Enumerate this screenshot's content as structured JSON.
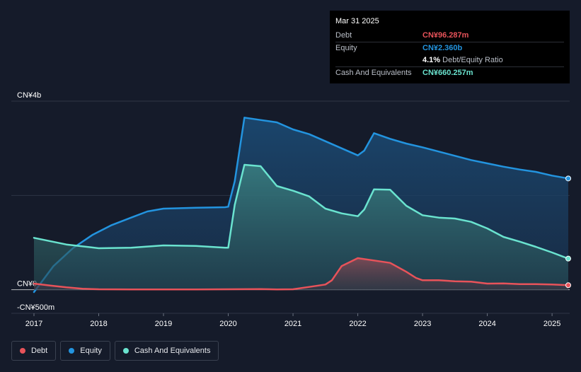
{
  "tooltip": {
    "date": "Mar 31 2025",
    "rows": [
      {
        "label": "Debt",
        "value": "CN¥96.287m",
        "color": "#e8535a"
      },
      {
        "label": "Equity",
        "value": "CN¥2.360b",
        "color": "#2394df"
      },
      {
        "label": "",
        "value": "4.1%",
        "suffix": "Debt/Equity Ratio",
        "color": "#ffffff"
      },
      {
        "label": "Cash And Equivalents",
        "value": "CN¥660.257m",
        "color": "#6ae3cf"
      }
    ]
  },
  "legend": [
    {
      "label": "Debt",
      "color": "#e8535a"
    },
    {
      "label": "Equity",
      "color": "#2394df"
    },
    {
      "label": "Cash And Equivalents",
      "color": "#6ae3cf"
    }
  ],
  "chart_data": {
    "type": "area",
    "title": "",
    "xlabel": "",
    "ylabel": "",
    "y_unit": "CN¥m",
    "y_tick_labels": [
      {
        "value": 4000,
        "label": "CN¥4b"
      },
      {
        "value": 0,
        "label": "CN¥0"
      },
      {
        "value": -500,
        "label": "-CN¥500m"
      }
    ],
    "ylim": [
      -500,
      4000
    ],
    "xlim": [
      2017.0,
      2025.25
    ],
    "x_ticks": [
      "2017",
      "2018",
      "2019",
      "2020",
      "2021",
      "2022",
      "2023",
      "2024",
      "2025"
    ],
    "grid": true,
    "legend_position": "bottom-left",
    "series": [
      {
        "name": "Equity",
        "color": "#2394df",
        "x": [
          2017.0,
          2017.3,
          2017.6,
          2017.9,
          2018.2,
          2018.5,
          2018.75,
          2019.0,
          2019.5,
          2019.95,
          2020.0,
          2020.1,
          2020.25,
          2020.5,
          2020.75,
          2021.0,
          2021.25,
          2021.5,
          2021.75,
          2022.0,
          2022.1,
          2022.25,
          2022.5,
          2022.75,
          2023.0,
          2023.25,
          2023.5,
          2023.75,
          2024.0,
          2024.25,
          2024.5,
          2024.75,
          2025.0,
          2025.25
        ],
        "y": [
          -50,
          500,
          880,
          1160,
          1370,
          1530,
          1660,
          1720,
          1740,
          1750,
          1760,
          2300,
          3650,
          3600,
          3550,
          3400,
          3300,
          3150,
          3000,
          2850,
          2950,
          3320,
          3200,
          3100,
          3020,
          2930,
          2840,
          2750,
          2680,
          2610,
          2550,
          2500,
          2420,
          2360
        ]
      },
      {
        "name": "Cash And Equivalents",
        "color": "#6ae3cf",
        "x": [
          2017.0,
          2017.5,
          2018.0,
          2018.5,
          2019.0,
          2019.5,
          2019.95,
          2020.0,
          2020.1,
          2020.25,
          2020.5,
          2020.75,
          2021.0,
          2021.25,
          2021.5,
          2021.75,
          2022.0,
          2022.1,
          2022.25,
          2022.5,
          2022.75,
          2023.0,
          2023.25,
          2023.5,
          2023.75,
          2024.0,
          2024.25,
          2024.5,
          2024.75,
          2025.0,
          2025.25
        ],
        "y": [
          1100,
          960,
          880,
          890,
          940,
          930,
          890,
          890,
          1800,
          2650,
          2620,
          2200,
          2100,
          1980,
          1720,
          1620,
          1560,
          1700,
          2130,
          2120,
          1780,
          1580,
          1530,
          1510,
          1440,
          1300,
          1120,
          1020,
          910,
          790,
          660
        ]
      },
      {
        "name": "Debt",
        "color": "#e8535a",
        "x": [
          2017.0,
          2017.25,
          2017.5,
          2017.75,
          2018.0,
          2018.5,
          2019.0,
          2019.5,
          2020.0,
          2020.5,
          2020.75,
          2021.0,
          2021.25,
          2021.5,
          2021.6,
          2021.75,
          2022.0,
          2022.25,
          2022.5,
          2022.75,
          2022.9,
          2023.0,
          2023.25,
          2023.5,
          2023.75,
          2024.0,
          2024.25,
          2024.5,
          2024.75,
          2025.0,
          2025.25
        ],
        "y": [
          130,
          90,
          50,
          20,
          10,
          5,
          5,
          5,
          10,
          15,
          5,
          10,
          60,
          110,
          200,
          500,
          670,
          620,
          570,
          380,
          250,
          200,
          200,
          180,
          170,
          130,
          135,
          120,
          120,
          110,
          96
        ]
      }
    ]
  }
}
